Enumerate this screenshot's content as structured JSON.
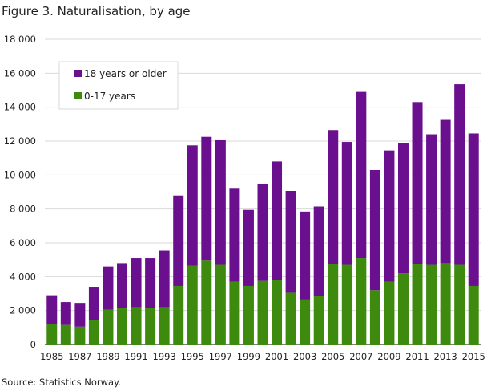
{
  "title": "Figure 3. Naturalisation, by age",
  "source": "Source: Statistics Norway.",
  "chart_data": {
    "type": "bar",
    "stacked": true,
    "categories": [
      "1985",
      "1986",
      "1987",
      "1988",
      "1989",
      "1990",
      "1991",
      "1992",
      "1993",
      "1994",
      "1995",
      "1996",
      "1997",
      "1998",
      "1999",
      "2000",
      "2001",
      "2002",
      "2003",
      "2004",
      "2005",
      "2006",
      "2007",
      "2008",
      "2009",
      "2010",
      "2011",
      "2012",
      "2013",
      "2014",
      "2015"
    ],
    "x_tick_labels": [
      "1985",
      "1987",
      "1989",
      "1991",
      "1993",
      "1995",
      "1997",
      "1999",
      "2001",
      "2003",
      "2005",
      "2007",
      "2009",
      "2011",
      "2013",
      "2015"
    ],
    "y_tick_labels": [
      "0",
      "2 000",
      "4 000",
      "6 000",
      "8 000",
      "10 000",
      "12 000",
      "14 000",
      "16 000",
      "18 000"
    ],
    "ylim": [
      0,
      18000
    ],
    "y_ticks": [
      0,
      2000,
      4000,
      6000,
      8000,
      10000,
      12000,
      14000,
      16000,
      18000
    ],
    "grid": true,
    "legend_position": "top-left",
    "series": [
      {
        "name": "18 years or older",
        "color": "#6a0f8e",
        "values": [
          1700,
          1350,
          1400,
          1950,
          2550,
          2650,
          2900,
          2950,
          3350,
          5350,
          7100,
          7300,
          7350,
          5500,
          4500,
          5700,
          7000,
          6000,
          5200,
          5300,
          7900,
          7250,
          9800,
          7100,
          7750,
          7700,
          9550,
          7700,
          8450,
          10650,
          9000
        ]
      },
      {
        "name": "0-17 years",
        "color": "#3d8a0f",
        "values": [
          1200,
          1150,
          1050,
          1450,
          2050,
          2150,
          2200,
          2150,
          2200,
          3450,
          4650,
          4950,
          4700,
          3700,
          3450,
          3750,
          3800,
          3050,
          2650,
          2850,
          4750,
          4700,
          5100,
          3200,
          3700,
          4200,
          4750,
          4700,
          4800,
          4700,
          3450
        ]
      }
    ]
  }
}
